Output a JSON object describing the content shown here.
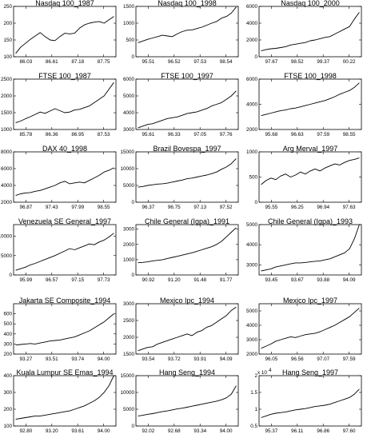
{
  "chart_data": [
    {
      "type": "line",
      "title": "Nasdaq 100_1987",
      "xticks": [
        "86.03",
        "86.61",
        "87.18",
        "87.75"
      ],
      "yticks": [
        "100",
        "150",
        "200",
        "250"
      ],
      "ylim": [
        100,
        250
      ],
      "x": [
        0.0,
        0.05,
        0.1,
        0.15,
        0.2,
        0.25,
        0.3,
        0.35,
        0.4,
        0.45,
        0.5,
        0.55,
        0.6,
        0.65,
        0.7,
        0.75,
        0.8,
        0.85,
        0.9,
        0.95,
        1.0
      ],
      "y": [
        110,
        128,
        140,
        152,
        162,
        172,
        160,
        150,
        148,
        160,
        170,
        168,
        170,
        185,
        195,
        200,
        203,
        205,
        200,
        210,
        220
      ]
    },
    {
      "type": "line",
      "title": "Nasdaq 100_1998",
      "xticks": [
        "95.51",
        "96.52",
        "97.53",
        "98.54"
      ],
      "yticks": [
        "0",
        "500",
        "1000",
        "1500"
      ],
      "ylim": [
        0,
        1500
      ],
      "x": [
        0.0,
        0.05,
        0.1,
        0.15,
        0.2,
        0.25,
        0.3,
        0.35,
        0.4,
        0.45,
        0.5,
        0.55,
        0.6,
        0.65,
        0.7,
        0.75,
        0.8,
        0.85,
        0.9,
        0.95,
        1.0
      ],
      "y": [
        420,
        470,
        520,
        560,
        600,
        640,
        620,
        600,
        680,
        750,
        790,
        800,
        840,
        880,
        940,
        1000,
        1050,
        1150,
        1200,
        1300,
        1480
      ]
    },
    {
      "type": "line",
      "title": "Nasdaq 100_2000",
      "xticks": [
        "97.67",
        "98.52",
        "99.37",
        "00.22"
      ],
      "yticks": [
        "0",
        "2000",
        "4000",
        "6000"
      ],
      "ylim": [
        0,
        6000
      ],
      "x": [
        0.0,
        0.05,
        0.1,
        0.15,
        0.2,
        0.25,
        0.3,
        0.35,
        0.4,
        0.45,
        0.5,
        0.55,
        0.6,
        0.65,
        0.7,
        0.75,
        0.8,
        0.85,
        0.9,
        0.95,
        1.0
      ],
      "y": [
        700,
        850,
        950,
        1000,
        1100,
        1200,
        1400,
        1500,
        1600,
        1700,
        1900,
        2000,
        2150,
        2300,
        2400,
        2700,
        3000,
        3300,
        3600,
        4500,
        5300
      ]
    },
    {
      "type": "line",
      "title": "FTSE 100_1987",
      "xticks": [
        "85.78",
        "86.36",
        "86.95",
        "87.53"
      ],
      "yticks": [
        "1000",
        "1500",
        "2000",
        "2500"
      ],
      "ylim": [
        1000,
        2500
      ],
      "x": [
        0.0,
        0.05,
        0.1,
        0.15,
        0.2,
        0.25,
        0.3,
        0.35,
        0.4,
        0.45,
        0.5,
        0.55,
        0.6,
        0.65,
        0.7,
        0.75,
        0.8,
        0.85,
        0.9,
        0.95,
        1.0
      ],
      "y": [
        1200,
        1250,
        1320,
        1380,
        1450,
        1520,
        1480,
        1550,
        1620,
        1560,
        1500,
        1520,
        1580,
        1600,
        1650,
        1700,
        1800,
        1900,
        2000,
        2200,
        2400
      ]
    },
    {
      "type": "line",
      "title": "FTSE 100_1997",
      "xticks": [
        "95.61",
        "96.33",
        "97.05",
        "97.76"
      ],
      "yticks": [
        "3000",
        "4000",
        "5000",
        "6000"
      ],
      "ylim": [
        3000,
        6000
      ],
      "x": [
        0.0,
        0.05,
        0.1,
        0.15,
        0.2,
        0.25,
        0.3,
        0.35,
        0.4,
        0.45,
        0.5,
        0.55,
        0.6,
        0.65,
        0.7,
        0.75,
        0.8,
        0.85,
        0.9,
        0.95,
        1.0
      ],
      "y": [
        3100,
        3200,
        3300,
        3350,
        3450,
        3550,
        3650,
        3700,
        3750,
        3850,
        3950,
        4000,
        4050,
        4150,
        4250,
        4400,
        4500,
        4600,
        4800,
        5000,
        5300
      ]
    },
    {
      "type": "line",
      "title": "FTSE 100_1998",
      "xticks": [
        "95.68",
        "96.63",
        "97.59",
        "98.55"
      ],
      "yticks": [
        "2000",
        "4000",
        "6000"
      ],
      "ylim": [
        2000,
        6000
      ],
      "x": [
        0.0,
        0.05,
        0.1,
        0.15,
        0.2,
        0.25,
        0.3,
        0.35,
        0.4,
        0.45,
        0.5,
        0.55,
        0.6,
        0.65,
        0.7,
        0.75,
        0.8,
        0.85,
        0.9,
        0.95,
        1.0
      ],
      "y": [
        3100,
        3200,
        3300,
        3400,
        3500,
        3550,
        3650,
        3700,
        3800,
        3900,
        4000,
        4100,
        4200,
        4300,
        4450,
        4600,
        4800,
        4950,
        5100,
        5350,
        5700
      ]
    },
    {
      "type": "line",
      "title": "DAX 40_1998",
      "xticks": [
        "96.87",
        "97.43",
        "97.99",
        "98.55"
      ],
      "yticks": [
        "2000",
        "4000",
        "6000",
        "8000"
      ],
      "ylim": [
        2000,
        8000
      ],
      "x": [
        0.0,
        0.05,
        0.1,
        0.15,
        0.2,
        0.25,
        0.3,
        0.35,
        0.4,
        0.45,
        0.5,
        0.55,
        0.6,
        0.65,
        0.7,
        0.75,
        0.8,
        0.85,
        0.9,
        0.95,
        1.0
      ],
      "y": [
        2800,
        3000,
        3100,
        3150,
        3300,
        3400,
        3600,
        3800,
        4000,
        4300,
        4500,
        4200,
        4300,
        4400,
        4300,
        4600,
        4900,
        5200,
        5600,
        5800,
        6100
      ]
    },
    {
      "type": "line",
      "title": "Brazil Bovespa_1997",
      "xticks": [
        "96.37",
        "96.75",
        "97.13",
        "97.52"
      ],
      "yticks": [
        "0",
        "5000",
        "10000",
        "15000"
      ],
      "ylim": [
        0,
        15000
      ],
      "x": [
        0.0,
        0.05,
        0.1,
        0.15,
        0.2,
        0.25,
        0.3,
        0.35,
        0.4,
        0.45,
        0.5,
        0.55,
        0.6,
        0.65,
        0.7,
        0.75,
        0.8,
        0.85,
        0.9,
        0.95,
        1.0
      ],
      "y": [
        4500,
        4700,
        5000,
        5200,
        5400,
        5500,
        5700,
        6000,
        6300,
        6600,
        7000,
        7200,
        7500,
        7800,
        8100,
        8500,
        9000,
        9800,
        10500,
        11500,
        13000
      ]
    },
    {
      "type": "line",
      "title": "Arg Merval_1997",
      "xticks": [
        "95.55",
        "96.25",
        "96.94",
        "97.63"
      ],
      "yticks": [
        "0",
        "500",
        "1000"
      ],
      "ylim": [
        0,
        1000
      ],
      "x": [
        0.0,
        0.05,
        0.1,
        0.15,
        0.2,
        0.25,
        0.3,
        0.35,
        0.4,
        0.45,
        0.5,
        0.55,
        0.6,
        0.65,
        0.7,
        0.75,
        0.8,
        0.85,
        0.9,
        0.95,
        1.0
      ],
      "y": [
        350,
        430,
        480,
        450,
        520,
        560,
        500,
        540,
        600,
        560,
        620,
        660,
        620,
        680,
        720,
        760,
        740,
        790,
        830,
        850,
        880
      ]
    },
    {
      "type": "line",
      "title": "Venezuela SE General_1997",
      "xticks": [
        "95.99",
        "96.57",
        "97.15",
        "97.73"
      ],
      "yticks": [
        "0",
        "5000",
        "10000"
      ],
      "ylim": [
        0,
        13000
      ],
      "x": [
        0.0,
        0.05,
        0.1,
        0.15,
        0.2,
        0.25,
        0.3,
        0.35,
        0.4,
        0.45,
        0.5,
        0.55,
        0.6,
        0.65,
        0.7,
        0.75,
        0.8,
        0.85,
        0.9,
        0.95,
        1.0
      ],
      "y": [
        1200,
        1600,
        2000,
        2600,
        3000,
        3500,
        4000,
        4500,
        5000,
        5600,
        6200,
        6800,
        6500,
        7000,
        7500,
        8000,
        7800,
        8500,
        9000,
        9800,
        10800
      ]
    },
    {
      "type": "line",
      "title": "Chile General (Igpa)_1991",
      "xticks": [
        "90.92",
        "91.20",
        "91.48",
        "91.77"
      ],
      "yticks": [
        "0",
        "1000",
        "2000",
        "3000"
      ],
      "ylim": [
        0,
        3300
      ],
      "x": [
        0.0,
        0.05,
        0.1,
        0.15,
        0.2,
        0.25,
        0.3,
        0.35,
        0.4,
        0.45,
        0.5,
        0.55,
        0.6,
        0.65,
        0.7,
        0.75,
        0.8,
        0.85,
        0.9,
        0.95,
        1.0
      ],
      "y": [
        800,
        820,
        860,
        920,
        960,
        1000,
        1080,
        1150,
        1220,
        1300,
        1380,
        1450,
        1550,
        1650,
        1750,
        1850,
        2000,
        2200,
        2500,
        2800,
        3100
      ]
    },
    {
      "type": "line",
      "title": "Chile General (Igpa)_1993",
      "xticks": [
        "93.45",
        "93.67",
        "93.88",
        "94.09"
      ],
      "yticks": [
        "3000",
        "4000",
        "5000"
      ],
      "ylim": [
        2500,
        5000
      ],
      "x": [
        0.0,
        0.05,
        0.1,
        0.15,
        0.2,
        0.25,
        0.3,
        0.35,
        0.4,
        0.45,
        0.5,
        0.55,
        0.6,
        0.65,
        0.7,
        0.75,
        0.8,
        0.85,
        0.9,
        0.95,
        1.0
      ],
      "y": [
        2700,
        2750,
        2800,
        2900,
        2950,
        3000,
        3050,
        3100,
        3100,
        3120,
        3150,
        3180,
        3200,
        3250,
        3300,
        3400,
        3500,
        3600,
        3800,
        4300,
        5000
      ]
    },
    {
      "type": "line",
      "title": "Jakarta SE Composite_1994",
      "xticks": [
        "93.27",
        "93.51",
        "93.74",
        "94.00"
      ],
      "yticks": [
        "200",
        "300",
        "400",
        "500",
        "600"
      ],
      "ylim": [
        200,
        700
      ],
      "x": [
        0.0,
        0.05,
        0.1,
        0.15,
        0.2,
        0.25,
        0.3,
        0.35,
        0.4,
        0.45,
        0.5,
        0.55,
        0.6,
        0.65,
        0.7,
        0.75,
        0.8,
        0.85,
        0.9,
        0.95,
        1.0
      ],
      "y": [
        290,
        295,
        300,
        305,
        300,
        310,
        320,
        330,
        335,
        340,
        350,
        360,
        370,
        390,
        410,
        430,
        460,
        490,
        520,
        560,
        600
      ]
    },
    {
      "type": "line",
      "title": "Mexico Ipc_1994",
      "xticks": [
        "93.54",
        "93.72",
        "93.91",
        "94.09"
      ],
      "yticks": [
        "1500",
        "2000",
        "2500",
        "3000"
      ],
      "ylim": [
        1500,
        3000
      ],
      "x": [
        0.0,
        0.05,
        0.1,
        0.15,
        0.2,
        0.25,
        0.3,
        0.35,
        0.4,
        0.45,
        0.5,
        0.55,
        0.6,
        0.65,
        0.7,
        0.75,
        0.8,
        0.85,
        0.9,
        0.95,
        1.0
      ],
      "y": [
        1600,
        1650,
        1700,
        1720,
        1800,
        1850,
        1900,
        1950,
        2000,
        2050,
        2100,
        2050,
        2150,
        2200,
        2300,
        2350,
        2450,
        2550,
        2650,
        2800,
        2900
      ]
    },
    {
      "type": "line",
      "title": "Mexico Ipc_1997",
      "xticks": [
        "96.05",
        "96.56",
        "97.07",
        "97.59"
      ],
      "yticks": [
        "2000",
        "3000",
        "4000",
        "5000"
      ],
      "ylim": [
        2000,
        5500
      ],
      "x": [
        0.0,
        0.05,
        0.1,
        0.15,
        0.2,
        0.25,
        0.3,
        0.35,
        0.4,
        0.45,
        0.5,
        0.55,
        0.6,
        0.65,
        0.7,
        0.75,
        0.8,
        0.85,
        0.9,
        0.95,
        1.0
      ],
      "y": [
        2400,
        2550,
        2700,
        2900,
        3000,
        3100,
        3200,
        3150,
        3250,
        3350,
        3400,
        3450,
        3550,
        3700,
        3850,
        4000,
        4200,
        4400,
        4600,
        4900,
        5200
      ]
    },
    {
      "type": "line",
      "title": "Kuala Lumpur SE Emas_1994",
      "xticks": [
        "92.80",
        "93.20",
        "93.61",
        "94.00"
      ],
      "yticks": [
        "100",
        "200",
        "300",
        "400"
      ],
      "ylim": [
        100,
        400
      ],
      "x": [
        0.0,
        0.05,
        0.1,
        0.15,
        0.2,
        0.25,
        0.3,
        0.35,
        0.4,
        0.45,
        0.5,
        0.55,
        0.6,
        0.65,
        0.7,
        0.75,
        0.8,
        0.85,
        0.9,
        0.95,
        1.0
      ],
      "y": [
        140,
        145,
        150,
        155,
        160,
        160,
        165,
        170,
        175,
        180,
        185,
        190,
        200,
        210,
        220,
        235,
        250,
        270,
        300,
        340,
        400
      ]
    },
    {
      "type": "line",
      "title": "Hang Seng_1994",
      "xticks": [
        "92.02",
        "92.68",
        "93.34",
        "94.00"
      ],
      "yticks": [
        "0",
        "5000",
        "10000",
        "15000"
      ],
      "ylim": [
        0,
        15000
      ],
      "x": [
        0.0,
        0.05,
        0.1,
        0.15,
        0.2,
        0.25,
        0.3,
        0.35,
        0.4,
        0.45,
        0.5,
        0.55,
        0.6,
        0.65,
        0.7,
        0.75,
        0.8,
        0.85,
        0.9,
        0.95,
        1.0
      ],
      "y": [
        3000,
        3200,
        3500,
        3700,
        4000,
        4300,
        4500,
        4800,
        5100,
        5300,
        5600,
        5900,
        6200,
        6500,
        6800,
        7100,
        7400,
        7800,
        8400,
        9500,
        12000
      ]
    },
    {
      "type": "line",
      "title": "Hang Seng_1997",
      "xticks": [
        "95.37",
        "96.11",
        "96.86",
        "97.60"
      ],
      "yticks": [
        "0.5",
        "1",
        "1.5",
        "2"
      ],
      "yexponent": "x 10",
      "yexponent_power": "4",
      "ylim": [
        0.5,
        2
      ],
      "x": [
        0.0,
        0.05,
        0.1,
        0.15,
        0.2,
        0.25,
        0.3,
        0.35,
        0.4,
        0.45,
        0.5,
        0.55,
        0.6,
        0.65,
        0.7,
        0.75,
        0.8,
        0.85,
        0.9,
        0.95,
        1.0
      ],
      "y": [
        0.75,
        0.8,
        0.85,
        0.88,
        0.9,
        0.92,
        0.95,
        0.98,
        1.0,
        1.02,
        1.05,
        1.08,
        1.1,
        1.12,
        1.15,
        1.2,
        1.25,
        1.3,
        1.35,
        1.45,
        1.6
      ]
    }
  ]
}
